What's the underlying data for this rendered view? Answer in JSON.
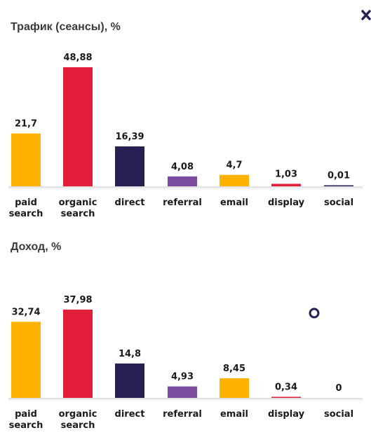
{
  "chart_data": [
    {
      "type": "bar",
      "title": "Трафик (сеансы), %",
      "categories": [
        [
          "paid",
          "search"
        ],
        [
          "organic",
          "search"
        ],
        [
          "direct"
        ],
        [
          "referral"
        ],
        [
          "email"
        ],
        [
          "display"
        ],
        [
          "social"
        ]
      ],
      "values": [
        21.7,
        48.88,
        16.39,
        4.08,
        4.7,
        1.03,
        0.01
      ],
      "value_labels": [
        "21,7",
        "48,88",
        "16,39",
        "4,08",
        "4,7",
        "1,03",
        "0,01"
      ],
      "colors": [
        "#ffb300",
        "#e31e3a",
        "#262152",
        "#7b4ba0",
        "#ffb300",
        "#e31e3a",
        "#262152"
      ],
      "ylim": [
        0,
        50
      ],
      "grid": false,
      "legend": "none"
    },
    {
      "type": "bar",
      "title": "Доход, %",
      "categories": [
        [
          "paid",
          "search"
        ],
        [
          "organic",
          "search"
        ],
        [
          "direct"
        ],
        [
          "referral"
        ],
        [
          "email"
        ],
        [
          "display"
        ],
        [
          "social"
        ]
      ],
      "values": [
        32.74,
        37.98,
        14.8,
        4.93,
        8.45,
        0.34,
        0
      ],
      "value_labels": [
        "32,74",
        "37,98",
        "14,8",
        "4,93",
        "8,45",
        "0,34",
        "0"
      ],
      "colors": [
        "#ffb300",
        "#e31e3a",
        "#262152",
        "#7b4ba0",
        "#ffb300",
        "#e31e3a",
        "#262152"
      ],
      "ylim": [
        0,
        50
      ],
      "grid": false,
      "legend": "none"
    }
  ],
  "decor": {
    "close_icon": "close-icon",
    "ring_icon": "ring-icon",
    "close_color": "#262152",
    "ring_color": "#262152"
  }
}
